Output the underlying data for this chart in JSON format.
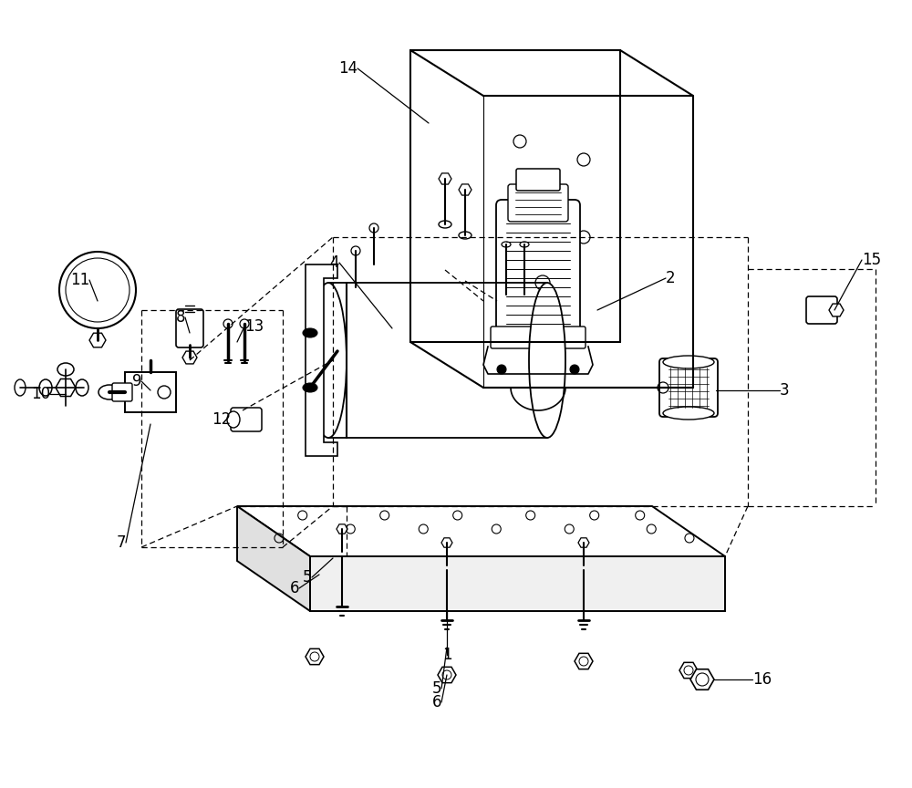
{
  "bg_color": "#ffffff",
  "figsize": [
    10.0,
    8.64
  ],
  "dpi": 100,
  "lc": "#000000",
  "lw": 1.3,
  "dashes": [
    5,
    3
  ]
}
